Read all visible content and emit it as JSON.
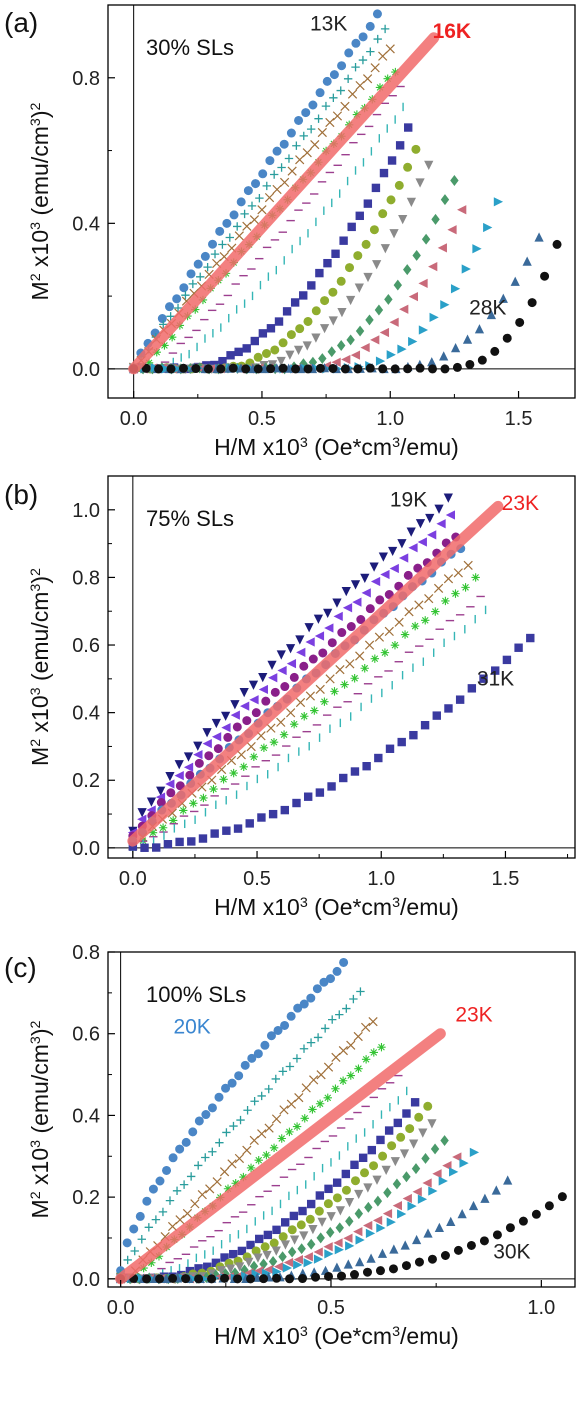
{
  "chart_data": [
    {
      "type": "scatter",
      "panel_label": "(a)",
      "title": "30% SLs",
      "xlabel": "H/M x10³ (Oe*cm³/emu)",
      "ylabel": "M² x10³ (emu/cm³)²",
      "xlim": [
        -0.1,
        1.72
      ],
      "ylim": [
        -0.08,
        1.0
      ],
      "xticks": [
        "0.0",
        "0.5",
        "1.0",
        "1.5"
      ],
      "yticks": [
        "0.0",
        "0.4",
        "0.8"
      ],
      "ytick_values": [
        0.0,
        0.4,
        0.8
      ],
      "xtick_values": [
        0.0,
        0.5,
        1.0,
        1.5
      ],
      "annotations": [
        {
          "text": "13K",
          "x": 0.76,
          "y": 0.93,
          "color": "#222222"
        },
        {
          "text": "16K",
          "x": 1.24,
          "y": 0.91,
          "color": "#ee2222",
          "bold": true
        },
        {
          "text": "28K",
          "x": 1.38,
          "y": 0.15,
          "color": "#222222"
        }
      ],
      "fit_line": {
        "label": "16K",
        "color": "#f26b6b",
        "x": [
          0.0,
          1.17
        ],
        "y": [
          0.0,
          0.91
        ]
      },
      "series": [
        {
          "name": "13K",
          "marker": "circle",
          "color": "#4a86c6",
          "x_end": 0.95,
          "y_end": 0.97,
          "k": 0.92,
          "shift": 0.0
        },
        {
          "marker": "plus",
          "color": "#2a9d9d",
          "x_end": 0.98,
          "y_end": 0.93,
          "k": 0.97,
          "shift": 0.0
        },
        {
          "marker": "cross",
          "color": "#a0703a",
          "x_end": 1.0,
          "y_end": 0.88,
          "k": 1.0,
          "shift": 0.0
        },
        {
          "marker": "asterisk",
          "color": "#33c433",
          "x_end": 1.02,
          "y_end": 0.82,
          "k": 1.0,
          "shift": 0.04
        },
        {
          "marker": "hbar",
          "color": "#9c3f8f",
          "x_end": 1.04,
          "y_end": 0.78,
          "k": 1.1,
          "shift": 0.08
        },
        {
          "marker": "vbar",
          "color": "#35b6b6",
          "x_end": 1.05,
          "y_end": 0.72,
          "k": 1.3,
          "shift": 0.1
        },
        {
          "marker": "square",
          "color": "#3a3aa0",
          "x_end": 1.07,
          "y_end": 0.66,
          "k": 1.8,
          "shift": 0.2
        },
        {
          "marker": "circle",
          "color": "#8fad2e",
          "x_end": 1.1,
          "y_end": 0.6,
          "k": 1.9,
          "shift": 0.3
        },
        {
          "marker": "tri_down",
          "color": "#8a8a8a",
          "x_end": 1.15,
          "y_end": 0.56,
          "k": 2.0,
          "shift": 0.37
        },
        {
          "marker": "diamond",
          "color": "#4a9a6a",
          "x_end": 1.25,
          "y_end": 0.52,
          "k": 2.2,
          "shift": 0.43
        },
        {
          "marker": "tri_left",
          "color": "#c96a7a",
          "x_end": 1.28,
          "y_end": 0.44,
          "k": 2.3,
          "shift": 0.5
        },
        {
          "marker": "tri_right",
          "color": "#2aa0c8",
          "x_end": 1.42,
          "y_end": 0.46,
          "k": 2.4,
          "shift": 0.55
        },
        {
          "marker": "tri_up",
          "color": "#3a6a9a",
          "x_end": 1.58,
          "y_end": 0.36,
          "k": 2.4,
          "shift": 0.62
        },
        {
          "name": "28K",
          "marker": "circle",
          "color": "#111111",
          "x_end": 1.65,
          "y_end": 0.34,
          "k": 2.6,
          "shift": 0.72
        }
      ]
    },
    {
      "type": "scatter",
      "panel_label": "(b)",
      "title": "75% SLs",
      "xlabel": "H/M x10³ (Oe*cm³/emu)",
      "ylabel": "M² x10³ (emu/cm³)²",
      "xlim": [
        -0.1,
        1.78
      ],
      "ylim": [
        -0.03,
        1.1
      ],
      "xticks": [
        "0.0",
        "0.5",
        "1.0",
        "1.5"
      ],
      "yticks": [
        "0.0",
        "0.2",
        "0.4",
        "0.6",
        "0.8",
        "1.0"
      ],
      "ytick_values": [
        0.0,
        0.2,
        0.4,
        0.6,
        0.8,
        1.0
      ],
      "xtick_values": [
        0.0,
        0.5,
        1.0,
        1.5
      ],
      "annotations": [
        {
          "text": "19K",
          "x": 1.11,
          "y": 1.01,
          "color": "#222222"
        },
        {
          "text": "23K",
          "x": 1.56,
          "y": 1.0,
          "color": "#ee2222"
        },
        {
          "text": "31K",
          "x": 1.46,
          "y": 0.48,
          "color": "#222222"
        }
      ],
      "fit_line": {
        "label": "23K",
        "color": "#f26b6b",
        "x": [
          0.0,
          1.47
        ],
        "y": [
          0.02,
          1.01
        ]
      },
      "series": [
        {
          "name": "19K",
          "marker": "tri_down",
          "color": "#1c1c7a",
          "x_end": 1.27,
          "y_end": 1.03,
          "k": 0.85,
          "shift": 0.0,
          "y0": 0.05
        },
        {
          "marker": "tri_left",
          "color": "#7b3fe0",
          "x_end": 1.28,
          "y_end": 0.98,
          "k": 0.88,
          "shift": 0.0,
          "y0": 0.04
        },
        {
          "marker": "circle",
          "color": "#8a1f8a",
          "x_end": 1.3,
          "y_end": 0.92,
          "k": 0.9,
          "shift": 0.0,
          "y0": 0.03
        },
        {
          "marker": "circle",
          "color": "#4a86c6",
          "x_end": 1.32,
          "y_end": 0.89,
          "k": 0.95,
          "shift": 0.0,
          "y0": 0.02
        },
        {
          "marker": "cross",
          "color": "#a0703a",
          "x_end": 1.35,
          "y_end": 0.84,
          "k": 1.0,
          "shift": 0.0,
          "y0": 0.01
        },
        {
          "marker": "asterisk",
          "color": "#33c433",
          "x_end": 1.38,
          "y_end": 0.8,
          "k": 1.05,
          "shift": 0.0,
          "y0": 0.0
        },
        {
          "marker": "hbar",
          "color": "#9c3f8f",
          "x_end": 1.4,
          "y_end": 0.74,
          "k": 1.1,
          "shift": 0.0,
          "y0": 0.0
        },
        {
          "marker": "vbar",
          "color": "#35b6b6",
          "x_end": 1.42,
          "y_end": 0.7,
          "k": 1.2,
          "shift": 0.0,
          "y0": 0.0
        },
        {
          "name": "31K",
          "marker": "square",
          "color": "#3a3aa0",
          "x_end": 1.6,
          "y_end": 0.62,
          "k": 1.75,
          "shift": 0.0,
          "y0": 0.0
        }
      ]
    },
    {
      "type": "scatter",
      "panel_label": "(c)",
      "title": "100% SLs",
      "xlabel": "H/M x10³ (Oe*cm³/emu)",
      "ylabel": "M² x10³ (emu/cm³)²",
      "xlim": [
        -0.03,
        1.08
      ],
      "ylim": [
        -0.02,
        0.8
      ],
      "xticks": [
        "0.0",
        "0.5",
        "1.0"
      ],
      "yticks": [
        "0.0",
        "0.2",
        "0.4",
        "0.6",
        "0.8"
      ],
      "ytick_values": [
        0.0,
        0.2,
        0.4,
        0.6,
        0.8
      ],
      "xtick_values": [
        0.0,
        0.5,
        1.0
      ],
      "annotations": [
        {
          "text": "20K",
          "x": 0.17,
          "y": 0.6,
          "color": "#3a86d0"
        },
        {
          "text": "23K",
          "x": 0.84,
          "y": 0.63,
          "color": "#ee2222"
        },
        {
          "text": "30K",
          "x": 0.93,
          "y": 0.05,
          "color": "#222222"
        }
      ],
      "fit_line": {
        "label": "23K",
        "color": "#f26b6b",
        "x": [
          0.0,
          0.76
        ],
        "y": [
          0.0,
          0.6
        ]
      },
      "series": [
        {
          "name": "20K",
          "marker": "circle",
          "color": "#4a86c6",
          "x_end": 0.53,
          "y_end": 0.77,
          "k": 0.7,
          "shift": 0.0,
          "y0": 0.02
        },
        {
          "marker": "plus",
          "color": "#2a9d9d",
          "x_end": 0.57,
          "y_end": 0.7,
          "k": 0.85,
          "shift": 0.0,
          "y0": 0.01
        },
        {
          "marker": "cross",
          "color": "#a0703a",
          "x_end": 0.6,
          "y_end": 0.63,
          "k": 0.95,
          "shift": 0.03,
          "y0": 0.0
        },
        {
          "marker": "asterisk",
          "color": "#33c433",
          "x_end": 0.62,
          "y_end": 0.57,
          "k": 1.0,
          "shift": 0.05,
          "y0": 0.0
        },
        {
          "marker": "hbar",
          "color": "#9c3f8f",
          "x_end": 0.66,
          "y_end": 0.5,
          "k": 1.2,
          "shift": 0.07,
          "y0": 0.0
        },
        {
          "marker": "vbar",
          "color": "#35b6b6",
          "x_end": 0.68,
          "y_end": 0.46,
          "k": 1.4,
          "shift": 0.08,
          "y0": 0.0
        },
        {
          "marker": "square",
          "color": "#3a3aa0",
          "x_end": 0.7,
          "y_end": 0.43,
          "k": 1.7,
          "shift": 0.1,
          "y0": 0.0
        },
        {
          "marker": "circle",
          "color": "#8fad2e",
          "x_end": 0.73,
          "y_end": 0.42,
          "k": 1.8,
          "shift": 0.13,
          "y0": 0.0
        },
        {
          "marker": "tri_down",
          "color": "#8a8a8a",
          "x_end": 0.74,
          "y_end": 0.38,
          "k": 1.9,
          "shift": 0.15,
          "y0": 0.0
        },
        {
          "marker": "diamond",
          "color": "#4a9a6a",
          "x_end": 0.77,
          "y_end": 0.34,
          "k": 2.0,
          "shift": 0.17,
          "y0": 0.0
        },
        {
          "marker": "tri_left",
          "color": "#c96a7a",
          "x_end": 0.8,
          "y_end": 0.3,
          "k": 2.1,
          "shift": 0.2,
          "y0": 0.0
        },
        {
          "marker": "tri_right",
          "color": "#2aa0c8",
          "x_end": 0.84,
          "y_end": 0.31,
          "k": 2.2,
          "shift": 0.22,
          "y0": 0.0
        },
        {
          "marker": "tri_up",
          "color": "#3a6a9a",
          "x_end": 0.92,
          "y_end": 0.24,
          "k": 2.4,
          "shift": 0.26,
          "y0": 0.0
        },
        {
          "name": "30K",
          "marker": "circle",
          "color": "#111111",
          "x_end": 1.05,
          "y_end": 0.2,
          "k": 2.6,
          "shift": 0.3,
          "y0": 0.0
        }
      ]
    }
  ]
}
